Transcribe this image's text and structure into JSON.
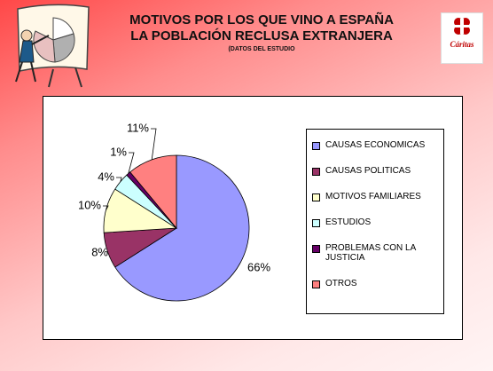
{
  "logo": "Cáritas",
  "chart_data": {
    "type": "pie",
    "title": [
      "MOTIVOS POR LOS QUE VINO A ESPAÑA",
      "LA POBLACIÓN RECLUSA EXTRANJERA"
    ],
    "note": "(DATOS DEL ESTUDIO",
    "categories": [
      "CAUSAS ECONOMICAS",
      "CAUSAS POLITICAS",
      "MOTIVOS FAMILIARES",
      "ESTUDIOS",
      "PROBLEMAS CON LA JUSTICIA",
      "OTROS"
    ],
    "values": [
      66,
      8,
      10,
      4,
      1,
      11
    ],
    "value_labels": [
      "66%",
      "8%",
      "10%",
      "4%",
      "1%",
      "11%"
    ],
    "colors": [
      "#9999ff",
      "#993366",
      "#ffffcc",
      "#ccffff",
      "#660066",
      "#ff8080"
    ],
    "legend": "right"
  }
}
